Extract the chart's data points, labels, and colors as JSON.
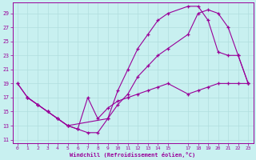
{
  "xlabel": "Windchill (Refroidissement éolien,°C)",
  "background_color": "#c8f0f0",
  "grid_color": "#b0dede",
  "line_color": "#990099",
  "xlim": [
    -0.5,
    23.5
  ],
  "ylim": [
    10.5,
    30.5
  ],
  "xticks": [
    0,
    1,
    2,
    3,
    4,
    5,
    6,
    7,
    8,
    9,
    10,
    11,
    12,
    13,
    14,
    15,
    17,
    18,
    19,
    20,
    21,
    22,
    23
  ],
  "yticks": [
    11,
    13,
    15,
    17,
    19,
    21,
    23,
    25,
    27,
    29
  ],
  "line1_x": [
    0,
    1,
    2,
    3,
    4,
    5,
    6,
    7,
    8,
    9,
    10,
    11,
    12,
    13,
    14,
    15,
    17,
    18,
    19,
    20,
    21,
    22,
    23
  ],
  "line1_y": [
    19,
    17,
    16,
    15,
    14,
    13,
    12.5,
    12,
    12,
    14,
    16,
    17.5,
    20,
    21.5,
    23,
    24,
    26,
    29,
    29.5,
    29,
    27,
    23,
    19
  ],
  "line2_x": [
    0,
    1,
    2,
    3,
    4,
    5,
    9,
    10,
    11,
    12,
    13,
    14,
    15,
    17,
    18,
    19,
    20,
    21,
    22,
    23
  ],
  "line2_y": [
    19,
    17,
    16,
    15,
    14,
    13,
    14,
    18,
    21,
    24,
    26,
    28,
    29,
    30,
    30,
    28,
    23.5,
    23,
    23,
    19
  ],
  "line3_x": [
    1,
    2,
    3,
    4,
    5,
    6,
    7,
    8,
    9,
    10,
    11,
    12,
    13,
    14,
    15,
    17,
    18,
    19,
    20,
    21,
    22,
    23
  ],
  "line3_y": [
    17,
    16,
    15,
    14,
    13,
    12.5,
    17,
    14,
    15.5,
    16.5,
    17,
    17.5,
    18,
    18.5,
    19,
    17.5,
    18,
    18.5,
    19,
    19,
    19,
    19
  ]
}
